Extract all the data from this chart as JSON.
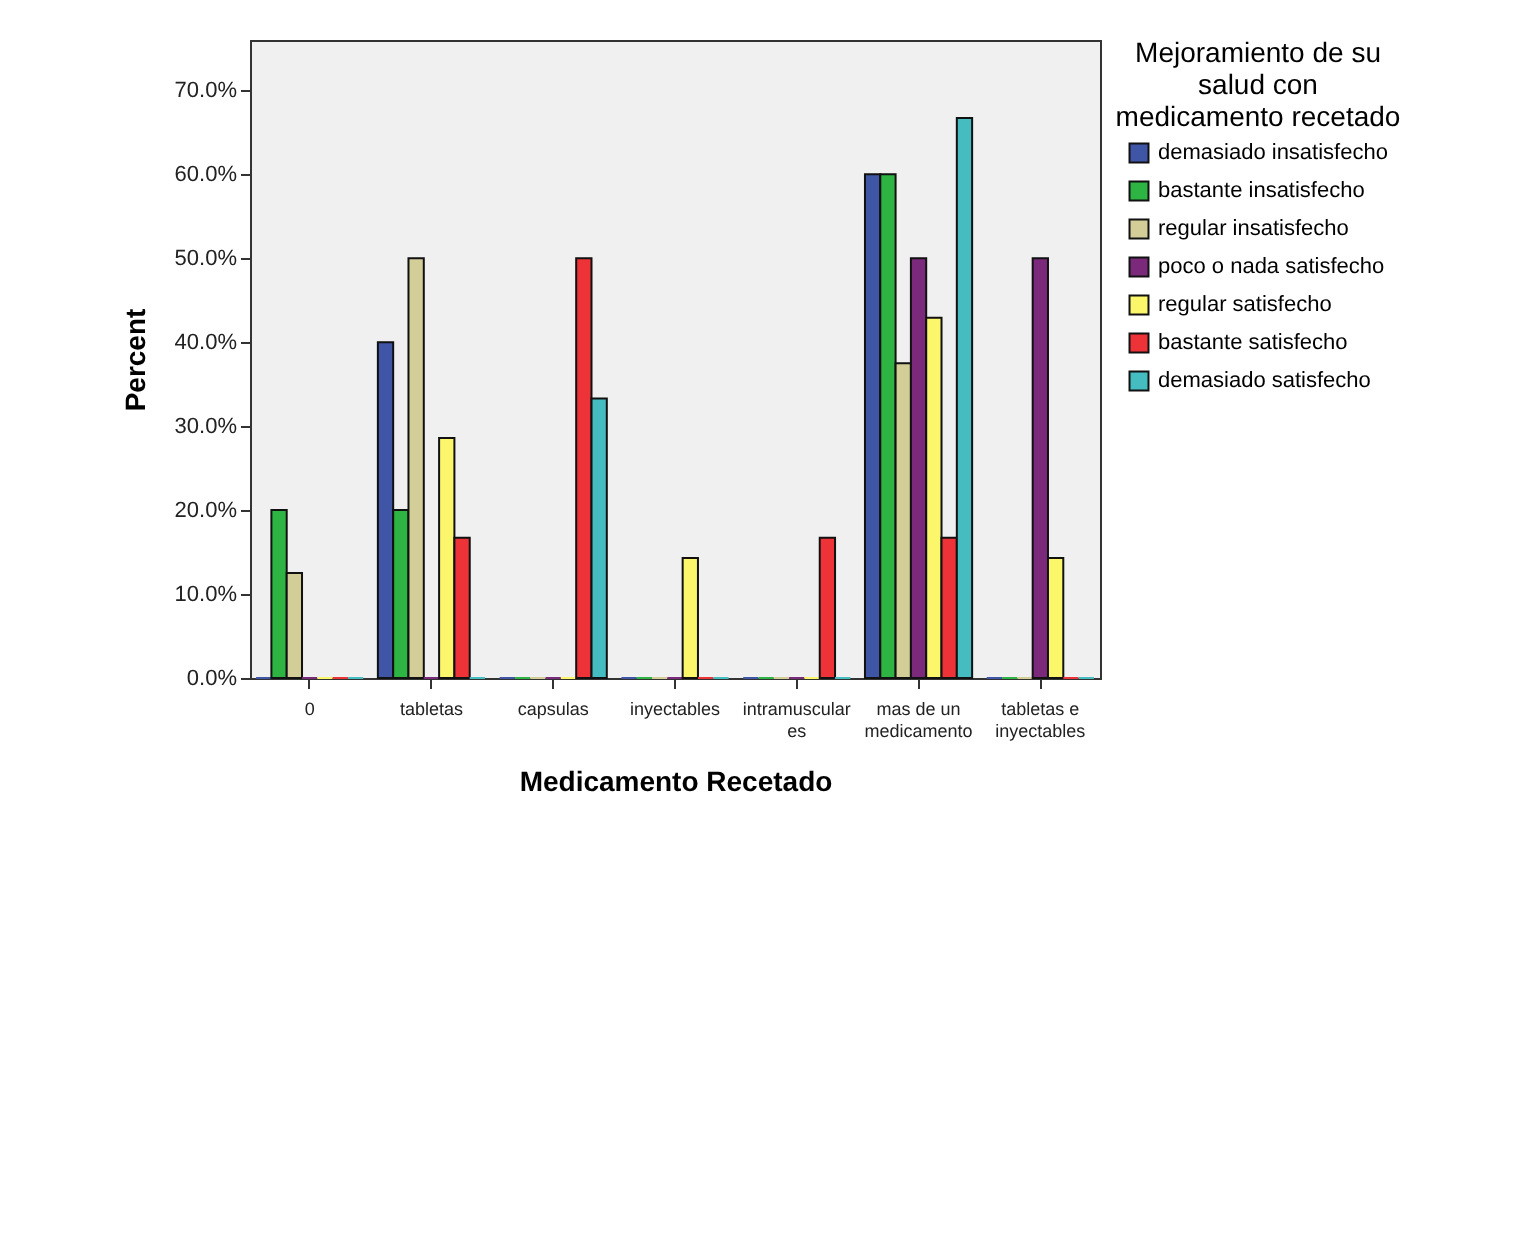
{
  "chart_data": {
    "type": "bar",
    "xlabel": "Medicamento Recetado",
    "ylabel": "Percent",
    "legend_title": "Mejoramiento de su\nsalud  con\nmedicamento recetado",
    "legend": "top right",
    "grid": false,
    "categories": [
      "0",
      "tabletas",
      "capsulas",
      "inyectables",
      "intramuscular\nes",
      "mas de un\nmedicamento",
      "tabletas e\ninyectables"
    ],
    "ylim": [
      0,
      76
    ],
    "yticks": [
      {
        "value": 0,
        "label": "0.0%"
      },
      {
        "value": 10,
        "label": "10.0%"
      },
      {
        "value": 20,
        "label": "20.0%"
      },
      {
        "value": 30,
        "label": "30.0%"
      },
      {
        "value": 40,
        "label": "40.0%"
      },
      {
        "value": 50,
        "label": "50.0%"
      },
      {
        "value": 60,
        "label": "60.0%"
      },
      {
        "value": 70,
        "label": "70.0%"
      }
    ],
    "series": [
      {
        "name": "demasiado insatisfecho",
        "color": "#3f55a6",
        "values": [
          0,
          40,
          0,
          0,
          0,
          60,
          0
        ]
      },
      {
        "name": "bastante insatisfecho",
        "color": "#2db443",
        "values": [
          20,
          20,
          0,
          0,
          0,
          60,
          0
        ]
      },
      {
        "name": "regular insatisfecho",
        "color": "#d3ce98",
        "values": [
          12.5,
          50,
          0,
          0,
          0,
          37.5,
          0
        ]
      },
      {
        "name": "poco o nada satisfecho",
        "color": "#7b2a7b",
        "values": [
          0,
          0,
          0,
          0,
          0,
          50,
          50
        ]
      },
      {
        "name": "regular satisfecho",
        "color": "#fbf66a",
        "values": [
          0,
          28.6,
          0,
          14.3,
          0,
          42.9,
          14.3
        ]
      },
      {
        "name": "bastante satisfecho",
        "color": "#ee3338",
        "values": [
          0,
          16.7,
          50,
          0,
          16.7,
          16.7,
          0
        ]
      },
      {
        "name": "demasiado satisfecho",
        "color": "#45bcc0",
        "values": [
          0,
          0,
          33.3,
          0,
          0,
          66.7,
          0
        ]
      }
    ]
  }
}
